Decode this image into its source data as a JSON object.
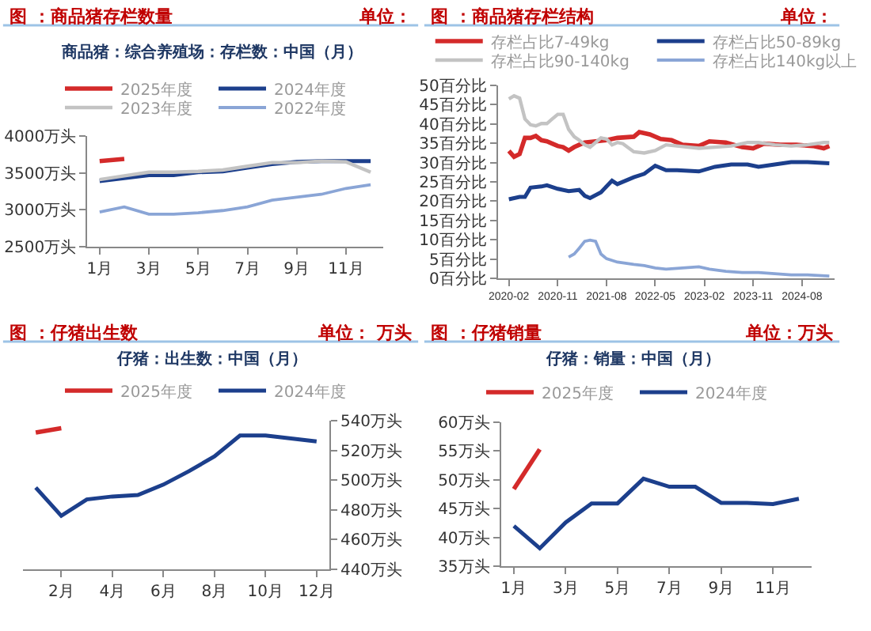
{
  "chart_data": [
    {
      "type": "line",
      "title": "图 ：商品猪存栏数量",
      "subtitle": "商品猪：综合养殖场：存栏数：中国（月）",
      "annotations": [
        "单位："
      ],
      "categories": [
        "1月",
        null,
        "3月",
        null,
        "5月",
        null,
        "7月",
        null,
        "9月",
        null,
        "11月",
        null
      ],
      "series": [
        {
          "name": "2025年度",
          "color": "#d42a2a",
          "values": [
            3660,
            3690,
            null,
            null,
            null,
            null,
            null,
            null,
            null,
            null,
            null,
            null
          ]
        },
        {
          "name": "2024年度",
          "color": "#1c3f8c",
          "values": [
            3390,
            3430,
            3470,
            3470,
            3510,
            3520,
            3570,
            3620,
            3650,
            3660,
            3660,
            3660
          ]
        },
        {
          "name": "2023年度",
          "color": "#c3c3c3",
          "values": [
            3410,
            3460,
            3510,
            3510,
            3520,
            3540,
            3590,
            3640,
            3640,
            3660,
            3650,
            3510
          ]
        },
        {
          "name": "2022年度",
          "color": "#8aa5d6",
          "values": [
            2970,
            3040,
            2940,
            2940,
            2960,
            2990,
            3040,
            3130,
            3170,
            3210,
            3290,
            3340
          ]
        }
      ],
      "ylim": [
        2500,
        4000
      ],
      "yticks": [
        {
          "value": 2500,
          "label": "2500万头"
        },
        {
          "value": 3000,
          "label": "3000万头"
        },
        {
          "value": 3500,
          "label": "3500万头"
        },
        {
          "value": 4000,
          "label": "4000万头"
        }
      ],
      "legend": "top"
    },
    {
      "type": "line",
      "title": "图 ：商品猪存栏结构",
      "annotations": [
        "单位："
      ],
      "series": [
        {
          "name": "存栏占比7-49kg",
          "color": "#d42a2a",
          "x": [
            "2020-02",
            "2020-03",
            "2020-04",
            "2020-05",
            "2020-06",
            "2020-07",
            "2020-08",
            "2020-09",
            "2020-10",
            "2020-11",
            "2020-12",
            "2021-01",
            "2021-02",
            "2021-03",
            "2021-04",
            "2021-06",
            "2021-08",
            "2021-10",
            "2022-01",
            "2022-02",
            "2022-04",
            "2022-06",
            "2022-08",
            "2022-10",
            "2023-01",
            "2023-03",
            "2023-06",
            "2023-09",
            "2023-11",
            "2024-01",
            "2024-04",
            "2024-07",
            "2024-10",
            "2024-12",
            "2025-01"
          ],
          "values": [
            33.0,
            31.5,
            32.2,
            36.4,
            36.4,
            36.9,
            35.8,
            35.5,
            34.9,
            34.3,
            34.0,
            33.1,
            34.0,
            34.6,
            35.2,
            35.5,
            35.8,
            36.4,
            36.7,
            37.9,
            37.3,
            36.1,
            35.8,
            34.6,
            34.3,
            35.5,
            35.2,
            34.0,
            33.7,
            34.9,
            34.6,
            34.6,
            34.3,
            33.7,
            34.3
          ]
        },
        {
          "name": "存栏占比50-89kg",
          "color": "#1c3f8c",
          "x": [
            "2020-02",
            "2020-04",
            "2020-05",
            "2020-06",
            "2020-08",
            "2020-09",
            "2020-11",
            "2021-01",
            "2021-03",
            "2021-04",
            "2021-05",
            "2021-07",
            "2021-09",
            "2021-10",
            "2022-01",
            "2022-03",
            "2022-05",
            "2022-07",
            "2022-09",
            "2023-01",
            "2023-04",
            "2023-07",
            "2023-10",
            "2023-12",
            "2024-03",
            "2024-06",
            "2024-09",
            "2025-01"
          ],
          "values": [
            20.5,
            21.1,
            21.1,
            23.5,
            23.8,
            24.1,
            23.2,
            22.6,
            22.9,
            21.4,
            20.8,
            22.3,
            25.3,
            24.4,
            26.2,
            27.1,
            29.2,
            28.0,
            28.0,
            27.7,
            28.9,
            29.5,
            29.5,
            28.9,
            29.5,
            30.1,
            30.1,
            29.8
          ]
        },
        {
          "name": "存栏占比90-140kg",
          "color": "#c3c3c3",
          "x": [
            "2020-02",
            "2020-03",
            "2020-04",
            "2020-05",
            "2020-06",
            "2020-07",
            "2020-08",
            "2020-09",
            "2020-10",
            "2020-11",
            "2020-12",
            "2021-01",
            "2021-02",
            "2021-03",
            "2021-04",
            "2021-05",
            "2021-06",
            "2021-07",
            "2021-08",
            "2021-09",
            "2021-10",
            "2021-11",
            "2022-01",
            "2022-03",
            "2022-05",
            "2022-07",
            "2022-09",
            "2023-01",
            "2023-04",
            "2023-07",
            "2023-10",
            "2023-12",
            "2024-03",
            "2024-06",
            "2024-09",
            "2024-12",
            "2025-01"
          ],
          "values": [
            46.5,
            47.3,
            46.7,
            41.3,
            39.8,
            39.5,
            40.1,
            40.1,
            41.3,
            42.5,
            42.5,
            38.6,
            36.7,
            35.8,
            34.6,
            34.0,
            35.2,
            36.4,
            36.1,
            34.6,
            35.2,
            34.9,
            32.8,
            32.5,
            33.1,
            34.6,
            34.3,
            33.7,
            34.0,
            34.3,
            35.2,
            35.2,
            34.6,
            34.3,
            34.6,
            35.2,
            35.2
          ]
        },
        {
          "name": "存栏占比140kg以上",
          "color": "#8aa5d6",
          "x": [
            "2021-01",
            "2021-02",
            "2021-03",
            "2021-04",
            "2021-05",
            "2021-06",
            "2021-07",
            "2021-08",
            "2021-10",
            "2022-01",
            "2022-03",
            "2022-05",
            "2022-07",
            "2022-10",
            "2023-01",
            "2023-03",
            "2023-06",
            "2023-09",
            "2023-12",
            "2024-03",
            "2024-06",
            "2024-09",
            "2025-01"
          ],
          "values": [
            5.5,
            6.3,
            7.8,
            9.6,
            9.9,
            9.6,
            6.3,
            5.1,
            4.2,
            3.6,
            3.3,
            2.7,
            2.4,
            2.7,
            3.0,
            2.4,
            1.8,
            1.5,
            1.5,
            1.2,
            0.9,
            0.9,
            0.6
          ]
        }
      ],
      "xlim": [
        "2019-12",
        "2025-02"
      ],
      "xticks": [
        "2020-02",
        "2020-11",
        "2021-08",
        "2022-05",
        "2023-02",
        "2023-11",
        "2024-08"
      ],
      "ylim": [
        0,
        50
      ],
      "yticks": [
        {
          "value": 0,
          "label": "0百分比"
        },
        {
          "value": 5,
          "label": "5百分比"
        },
        {
          "value": 10,
          "label": "10百分比"
        },
        {
          "value": 15,
          "label": "15百分比"
        },
        {
          "value": 20,
          "label": "20百分比"
        },
        {
          "value": 25,
          "label": "25百分比"
        },
        {
          "value": 30,
          "label": "30百分比"
        },
        {
          "value": 35,
          "label": "35百分比"
        },
        {
          "value": 40,
          "label": "40百分比"
        },
        {
          "value": 45,
          "label": "45百分比"
        },
        {
          "value": 50,
          "label": "50百分比"
        }
      ],
      "legend": "top"
    },
    {
      "type": "line",
      "title": "图 ：仔猪出生数",
      "subtitle": "仔猪：出生数：中国（月）",
      "annotations": [
        "单位： 万头"
      ],
      "categories": [
        null,
        "2月",
        null,
        "4月",
        null,
        "6月",
        null,
        "8月",
        null,
        "10月",
        null,
        "12月"
      ],
      "series": [
        {
          "name": "2025年度",
          "color": "#d42a2a",
          "values": [
            532,
            535,
            null,
            null,
            null,
            null,
            null,
            null,
            null,
            null,
            null,
            null
          ]
        },
        {
          "name": "2024年度",
          "color": "#1c3f8c",
          "values": [
            495,
            476,
            487,
            489,
            490,
            497,
            506,
            516,
            530,
            530,
            528,
            526
          ]
        }
      ],
      "ylim": [
        440,
        540
      ],
      "yticks": [
        {
          "value": 440,
          "label": "440万头"
        },
        {
          "value": 460,
          "label": "460万头"
        },
        {
          "value": 480,
          "label": "480万头"
        },
        {
          "value": 500,
          "label": "500万头"
        },
        {
          "value": 520,
          "label": "520万头"
        },
        {
          "value": 540,
          "label": "540万头"
        }
      ],
      "legend": "top"
    },
    {
      "type": "line",
      "title": "图 ：仔猪销量",
      "subtitle": "仔猪：销量：中国（月）",
      "annotations": [
        "单位：万头"
      ],
      "categories": [
        "1月",
        null,
        "3月",
        null,
        "5月",
        null,
        "7月",
        null,
        "9月",
        null,
        "11月",
        null
      ],
      "series": [
        {
          "name": "2025年度",
          "color": "#d42a2a",
          "values": [
            48.4,
            55.3,
            null,
            null,
            null,
            null,
            null,
            null,
            null,
            null,
            null,
            null
          ]
        },
        {
          "name": "2024年度",
          "color": "#1c3f8c",
          "values": [
            42.0,
            38.1,
            42.6,
            45.9,
            45.9,
            50.2,
            48.8,
            48.8,
            46.0,
            46.0,
            45.8,
            46.7
          ]
        }
      ],
      "ylim": [
        35,
        60
      ],
      "yticks": [
        {
          "value": 35,
          "label": "35万头"
        },
        {
          "value": 40,
          "label": "40万头"
        },
        {
          "value": 45,
          "label": "45万头"
        },
        {
          "value": 50,
          "label": "50万头"
        },
        {
          "value": 55,
          "label": "55万头"
        },
        {
          "value": 60,
          "label": "60万头"
        }
      ],
      "legend": "top"
    }
  ]
}
